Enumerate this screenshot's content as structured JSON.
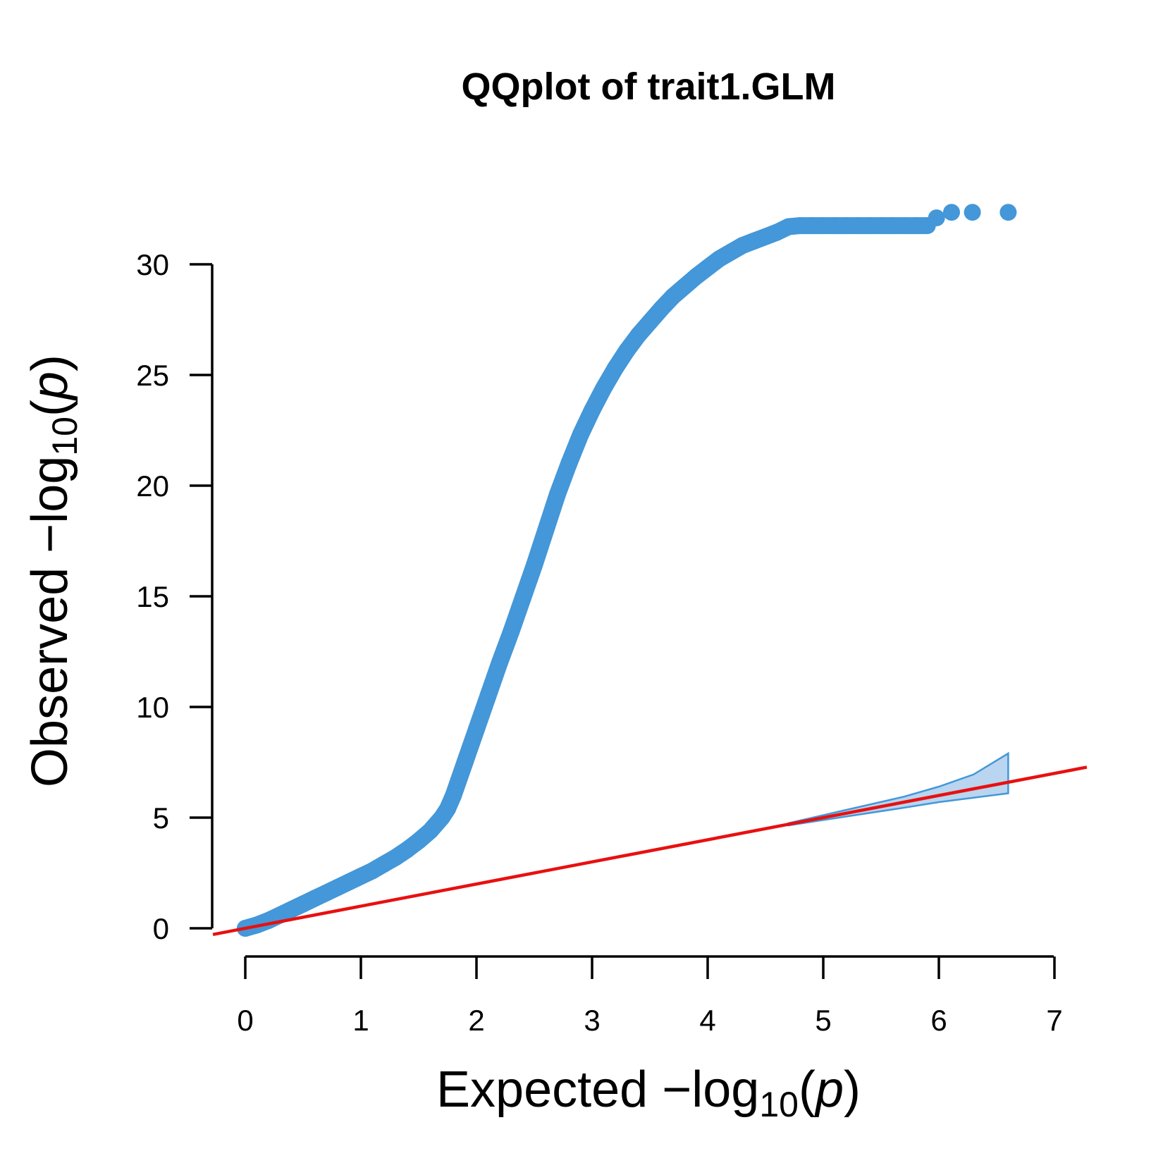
{
  "chart_data": {
    "type": "scatter",
    "title": "QQplot of trait1.GLM",
    "xlabel": {
      "text": "Expected ",
      "prefix": "−log",
      "sub": "10",
      "paren_open": "(",
      "var": "p",
      "paren_close": ")"
    },
    "ylabel": {
      "text": "Observed ",
      "prefix": "−log",
      "sub": "10",
      "paren_open": "(",
      "var": "p",
      "paren_close": ")"
    },
    "xlim": [
      0,
      7
    ],
    "ylim": [
      0,
      30
    ],
    "xticks": [
      0,
      1,
      2,
      3,
      4,
      5,
      6,
      7
    ],
    "yticks": [
      0,
      5,
      10,
      15,
      20,
      25,
      30
    ],
    "grid": false,
    "legend": "none",
    "colors": {
      "points": "#4497d8",
      "reference_line": "#e81010",
      "band_fill": "#b9d5ef",
      "band_stroke": "#4497d8"
    },
    "series": [
      {
        "kind": "points",
        "x": [
          0.0,
          0.1,
          0.2,
          0.3,
          0.4,
          0.5,
          0.6,
          0.7,
          0.8,
          0.9,
          1.0,
          1.1,
          1.2,
          1.3,
          1.4,
          1.5,
          1.6,
          1.7,
          1.75,
          1.8,
          1.9,
          2.0,
          2.1,
          2.2,
          2.3,
          2.4,
          2.5,
          2.6,
          2.7,
          2.8,
          2.9,
          3.0,
          3.1,
          3.2,
          3.3,
          3.4,
          3.5,
          3.6,
          3.7,
          3.8,
          3.9,
          4.0,
          4.1,
          4.2,
          4.3,
          4.4,
          4.5,
          4.6,
          4.7,
          4.8,
          4.9,
          5.0,
          5.1,
          5.2,
          5.3,
          5.4,
          5.5,
          5.6,
          5.7,
          5.8,
          5.9,
          5.98,
          6.11,
          6.29,
          6.6
        ],
        "y": [
          0.0,
          0.15,
          0.35,
          0.6,
          0.85,
          1.1,
          1.35,
          1.6,
          1.85,
          2.1,
          2.35,
          2.6,
          2.9,
          3.2,
          3.55,
          3.95,
          4.4,
          5.0,
          5.4,
          6.0,
          7.5,
          9.0,
          10.5,
          12.0,
          13.4,
          14.9,
          16.4,
          18.0,
          19.6,
          21.0,
          22.3,
          23.4,
          24.4,
          25.3,
          26.1,
          26.8,
          27.4,
          28.0,
          28.55,
          29.0,
          29.45,
          29.85,
          30.25,
          30.55,
          30.85,
          31.05,
          31.25,
          31.45,
          31.7,
          31.75,
          31.75,
          31.75,
          31.75,
          31.75,
          31.75,
          31.75,
          31.75,
          31.75,
          31.75,
          31.75,
          31.75,
          32.1,
          32.35,
          32.35,
          32.35
        ]
      },
      {
        "kind": "reference_line",
        "x": [
          -0.28,
          7.28
        ],
        "y": [
          -0.28,
          7.28
        ]
      },
      {
        "kind": "confidence_band",
        "x": [
          4.7,
          5.2,
          5.7,
          6.0,
          6.3,
          6.6
        ],
        "upper": [
          4.75,
          5.35,
          5.95,
          6.4,
          6.95,
          7.9
        ],
        "lower": [
          4.65,
          5.05,
          5.45,
          5.7,
          5.9,
          6.1
        ]
      }
    ]
  }
}
